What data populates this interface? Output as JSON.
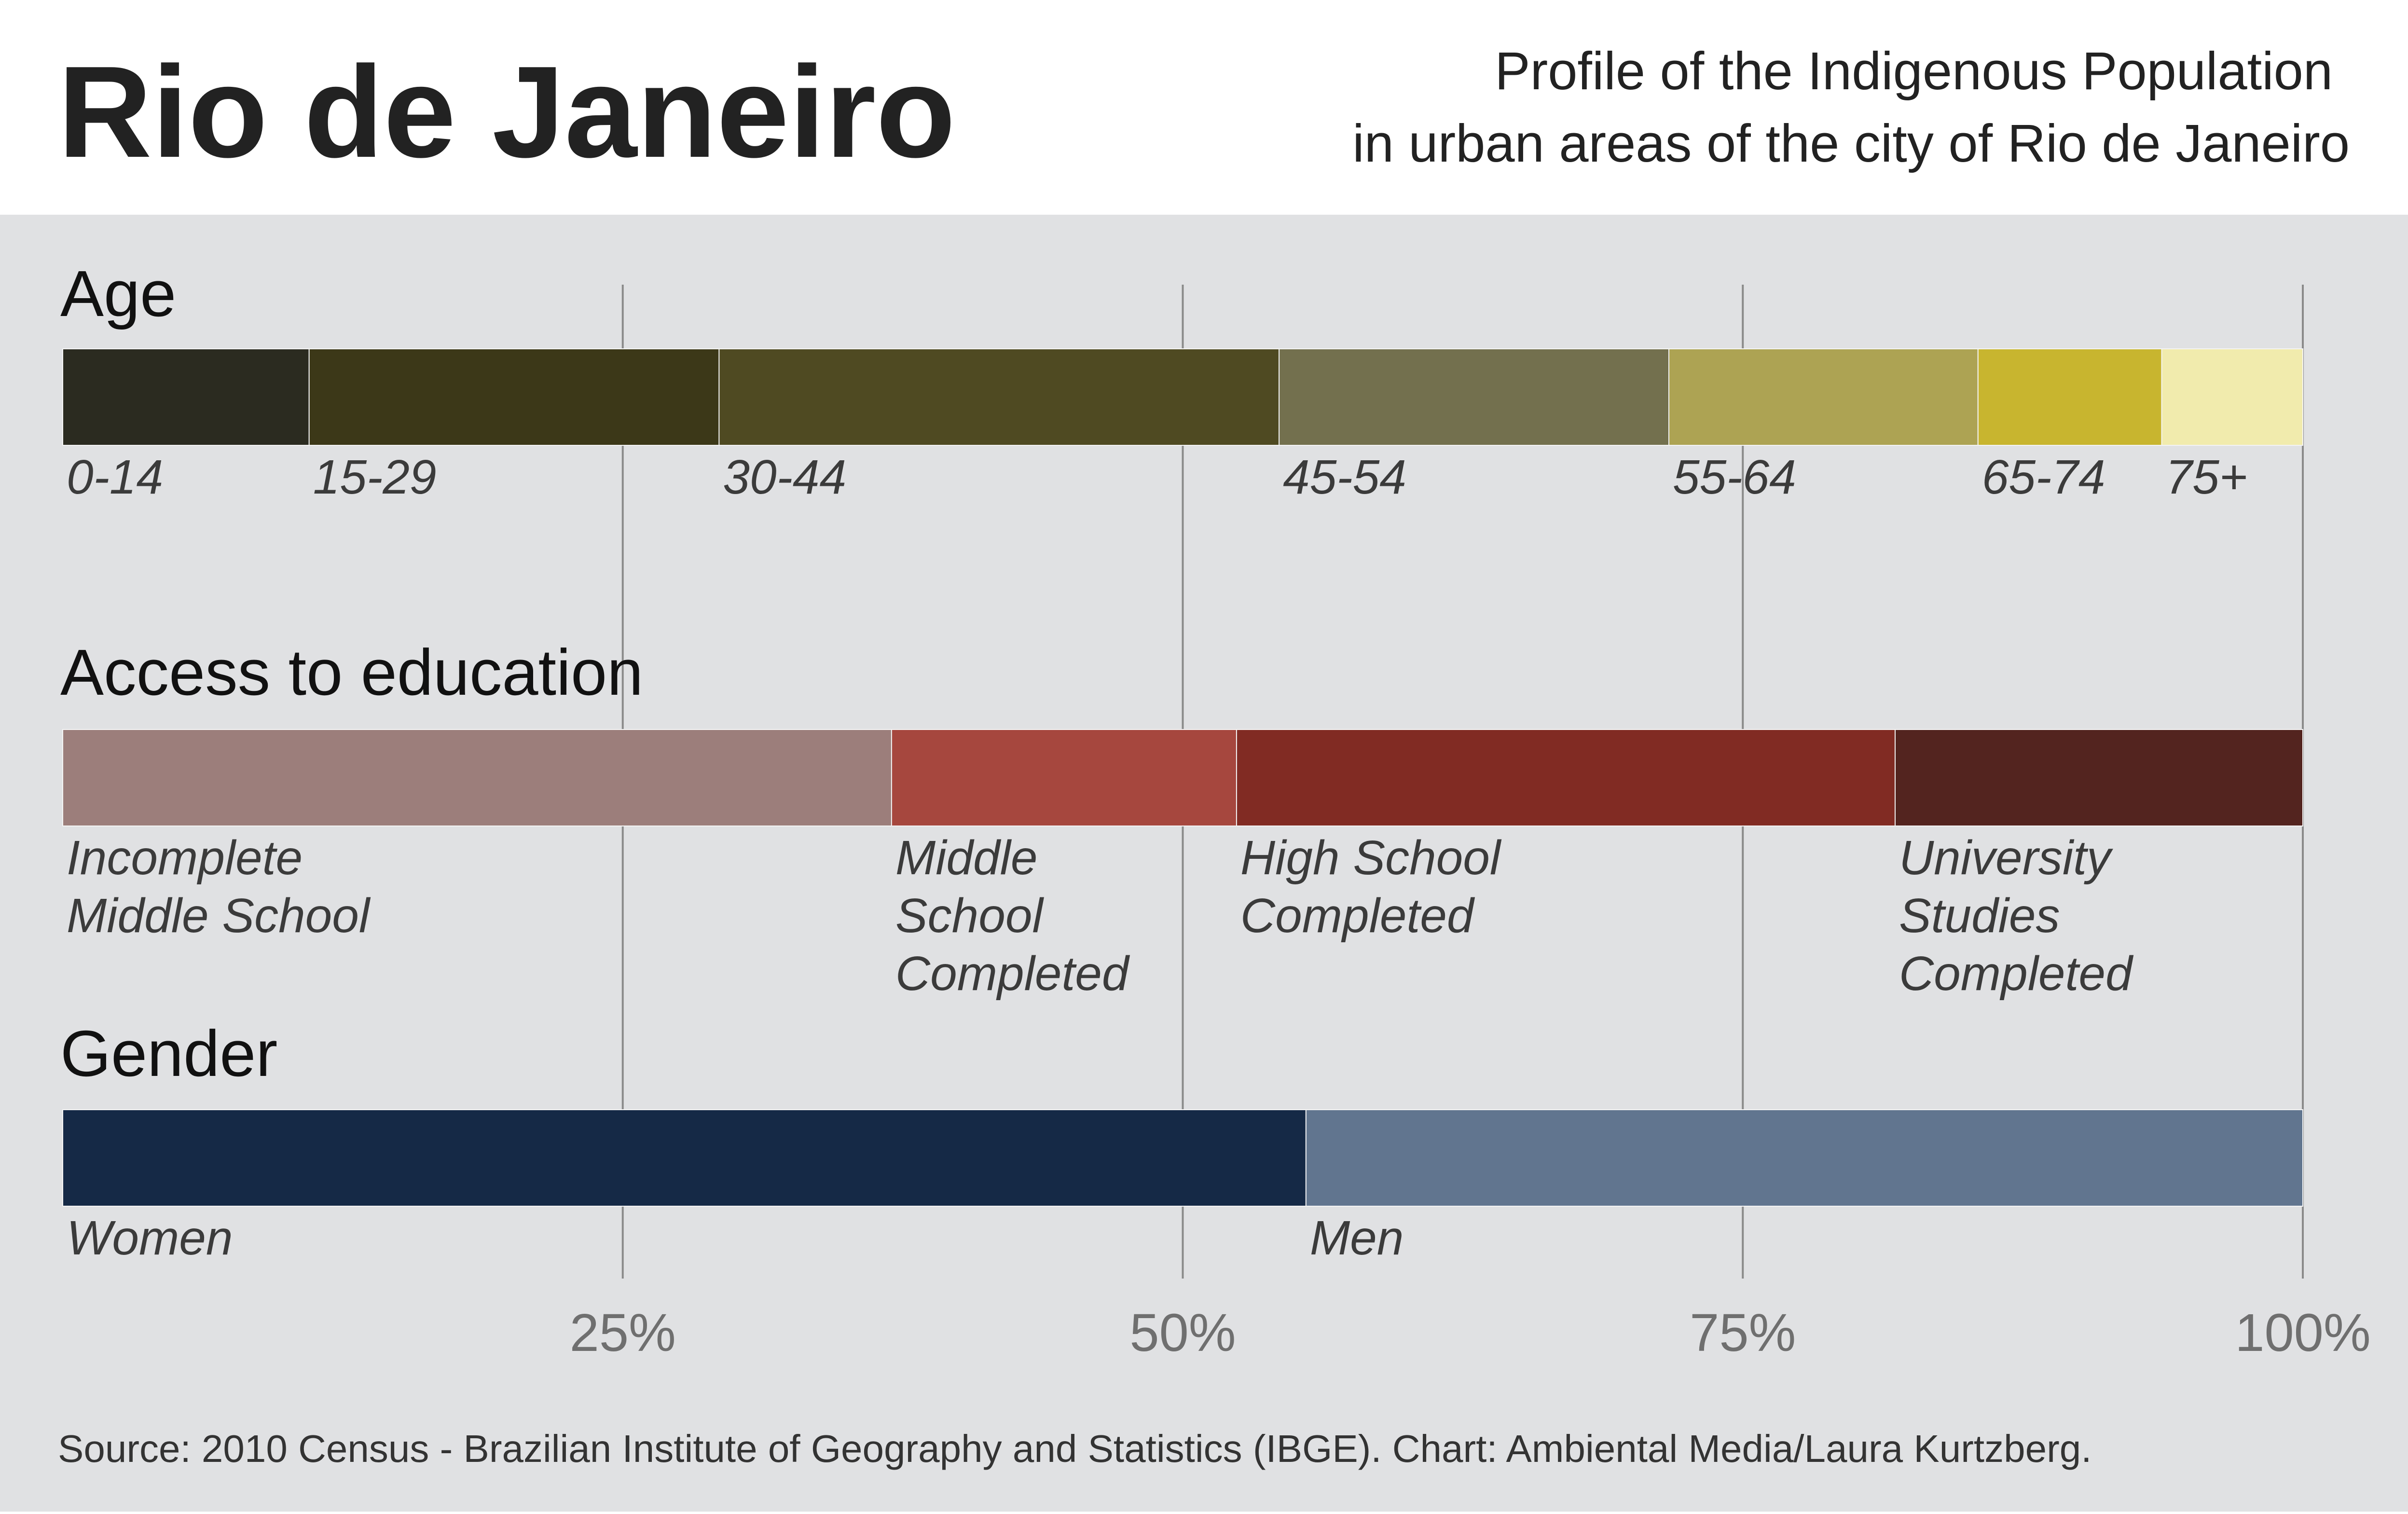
{
  "header": {
    "title": "Rio de Janeiro",
    "subtitle_line1": "Profile of the Indigenous Population",
    "subtitle_line2": "in urban areas of the city of Rio de Janeiro"
  },
  "footer": {
    "source": "Source: 2010 Census - Brazilian Institute of Geography and Statistics (IBGE). Chart: Ambiental Media/Laura Kurtzberg."
  },
  "colors": {
    "header_bg": "#ffffff",
    "panel_bg": "#e0e1e3",
    "title_text": "#222222",
    "axis_text": "#6f6f6f",
    "gridline": "#8a8a8a"
  },
  "chart_data": {
    "type": "bar",
    "orientation": "horizontal",
    "stacked": "100%",
    "x_ticks": [
      {
        "value": 25,
        "label": "25%"
      },
      {
        "value": 50,
        "label": "50%"
      },
      {
        "value": 75,
        "label": "75%"
      },
      {
        "value": 100,
        "label": "100%"
      }
    ],
    "xlim": [
      0,
      100
    ],
    "grid": true,
    "bars": [
      {
        "name": "Age",
        "segments": [
          {
            "label": "0-14",
            "value": 11.0,
            "color": "#2b2b20"
          },
          {
            "label": "15-29",
            "value": 18.3,
            "color": "#3c3818"
          },
          {
            "label": "30-44",
            "value": 25.0,
            "color": "#4f4a22"
          },
          {
            "label": "45-54",
            "value": 17.4,
            "color": "#73704e"
          },
          {
            "label": "55-64",
            "value": 13.8,
            "color": "#ada353"
          },
          {
            "label": "65-74",
            "value": 8.2,
            "color": "#c8b52f"
          },
          {
            "label": "75+",
            "value": 6.3,
            "color": "#f1ebad"
          }
        ]
      },
      {
        "name": "Access to education",
        "segments": [
          {
            "label": "Incomplete\nMiddle School",
            "value": 37.0,
            "color": "#9c7e7b"
          },
          {
            "label": "Middle\nSchool\nCompleted",
            "value": 15.4,
            "color": "#a6473e"
          },
          {
            "label": "High School\nCompleted",
            "value": 29.4,
            "color": "#812b23"
          },
          {
            "label": "University\nStudies\nCompleted",
            "value": 18.2,
            "color": "#53241f"
          }
        ]
      },
      {
        "name": "Gender",
        "segments": [
          {
            "label": "Women",
            "value": 55.5,
            "color": "#152946"
          },
          {
            "label": "Men",
            "value": 44.5,
            "color": "#61758f"
          }
        ]
      }
    ]
  }
}
